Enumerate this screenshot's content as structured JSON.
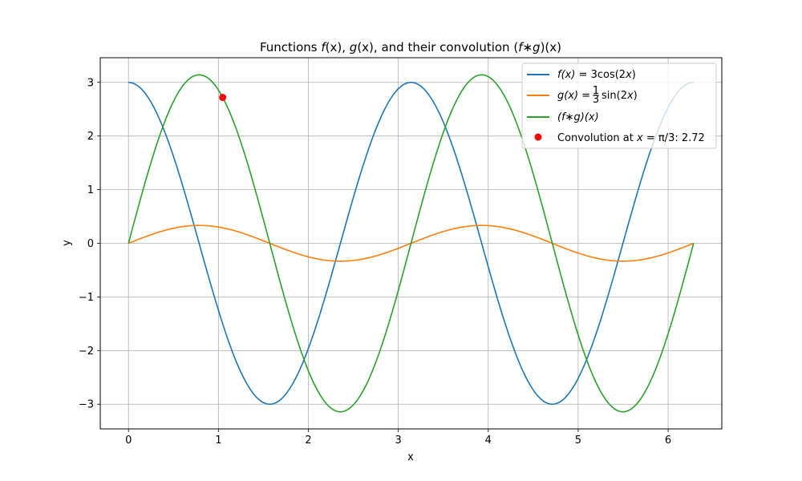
{
  "chart_data": {
    "type": "line",
    "title": {
      "prefix": "Functions ",
      "f": "f",
      "paren_x": "(x)",
      "sep1": ", ",
      "g": "g",
      "sep2": ", and their convolution (",
      "fg": "f∗g",
      "end": ")(x)"
    },
    "xlabel": "x",
    "ylabel": "y",
    "xlim": [
      -0.314,
      6.597
    ],
    "ylim": [
      -3.46,
      3.46
    ],
    "xticks": [
      0,
      1,
      2,
      3,
      4,
      5,
      6
    ],
    "xtick_labels": [
      "0",
      "1",
      "2",
      "3",
      "4",
      "5",
      "6"
    ],
    "yticks": [
      -3,
      -2,
      -1,
      0,
      1,
      2,
      3
    ],
    "ytick_labels": [
      "−3",
      "−2",
      "−1",
      "0",
      "1",
      "2",
      "3"
    ],
    "grid": true,
    "legend_position": "top-right",
    "x_range": [
      0,
      6.283185
    ],
    "series": [
      {
        "key": "f",
        "name": "f(x) = 3cos(2x)",
        "amplitude": 3,
        "frequency": 2,
        "function": "cos",
        "color": "#1f77b4"
      },
      {
        "key": "g",
        "name": "g(x) = (1/3)sin(2x)",
        "amplitude": 0.3333,
        "frequency": 2,
        "function": "sin",
        "color": "#ff7f0e"
      },
      {
        "key": "conv",
        "name": "(f∗g)(x)",
        "amplitude": 3.1416,
        "frequency": 2,
        "function": "sin",
        "color": "#2ca02c"
      }
    ],
    "marker": {
      "name": "Convolution at x = π/3: 2.72",
      "x": 1.0472,
      "y": 2.72,
      "color": "#ff0000"
    }
  },
  "legend": {
    "f": {
      "fx": "f(x)",
      "eq": " = 3cos(2",
      "x": "x",
      "close": ")"
    },
    "g": {
      "gx": "g(x)",
      "eq": " = ",
      "num": "1",
      "den": "3",
      "sin": "sin(2",
      "x": "x",
      "close": ")"
    },
    "conv": {
      "text": "(f∗g)(x)"
    },
    "marker": {
      "pre": "Convolution at ",
      "x": "x",
      "eq": " = π/3: 2.72"
    }
  }
}
